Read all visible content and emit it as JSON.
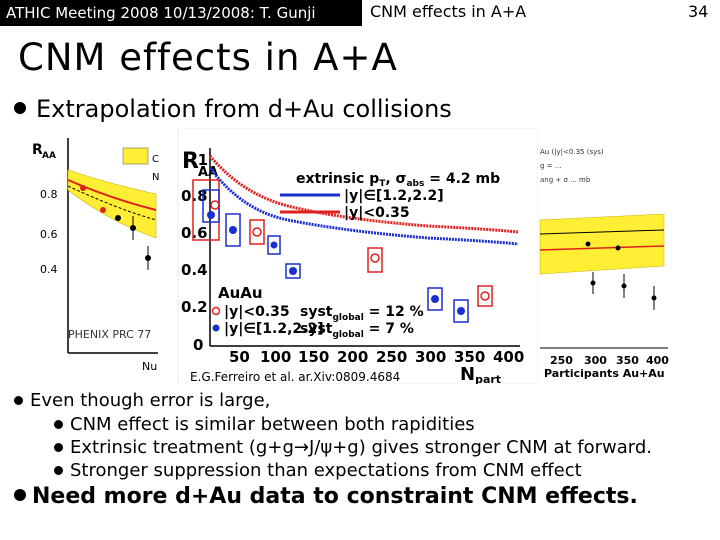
{
  "header": {
    "left": "ATHIC Meeting 2008 10/13/2008: T. Gunji",
    "center": "CNM effects in A+A",
    "page": "34"
  },
  "title": "CNM effects in A+A",
  "bullet_main": "Extrapolation from d+Au collisions",
  "figure": {
    "left_plot": {
      "ylabel": "R",
      "ylabel_sub": "AA",
      "yticks": [
        "0.8",
        "0.6",
        "0.4"
      ],
      "footnote": "PHENIX PRC 77",
      "xlabel_frag": "Nu",
      "legend_frag_1": "C",
      "legend_frag_2": "N"
    },
    "center_plot": {
      "ylabel": "R",
      "ylabel_sub": "AA",
      "yticks": [
        "1",
        "0.8",
        "0.6",
        "0.4",
        "0.2",
        "0"
      ],
      "xticks": [
        "50",
        "100",
        "150",
        "200",
        "250",
        "300",
        "350",
        "400"
      ],
      "xlabel": "N",
      "xlabel_sub": "part",
      "model_label": "extrinsic p",
      "model_sub": "T",
      "model_sigma": ", σ",
      "model_sigma_sub": "abs",
      "model_value": " = 4.2 mb",
      "legend_fwd": "|y|∈[1.2,2.2]",
      "legend_mid": "|y|<0.35",
      "data_title": "AuAu",
      "data_mid": "|y|<0.35",
      "data_fwd": "|y|∈[1.2,2.2]",
      "syst_label_1": "syst",
      "syst_label_1_sub": "global",
      "syst_value_1": " = 12 %",
      "syst_label_2": "syst",
      "syst_label_2_sub": "global",
      "syst_value_2": " = 7 %"
    },
    "right_plot": {
      "xticks": [
        "250",
        "300",
        "350",
        "400"
      ],
      "xlabel": "Participants Au+Au",
      "legend_line_1": "Au (|y|<0.35 (sys)",
      "legend_line_2": "g = ...",
      "legend_line_3": "ang + σ ... mb"
    }
  },
  "citation": "E.G.Ferreiro et al. ar.Xiv:0809.4684",
  "even_bullet": "Even though error is large,",
  "sub_bullets": [
    "CNM effect is similar between both rapidities",
    "Extrinsic treatment (g+g→J/ψ+g) gives stronger CNM at forward.",
    "Stronger suppression than expectations from CNM effect"
  ],
  "final_bullet": "Need more d+Au data to constraint CNM effects.",
  "colors": {
    "band_yellow": "#ffee33",
    "red": "#e0201c",
    "blue": "#1a2fd0",
    "header_bg": "#000000"
  }
}
